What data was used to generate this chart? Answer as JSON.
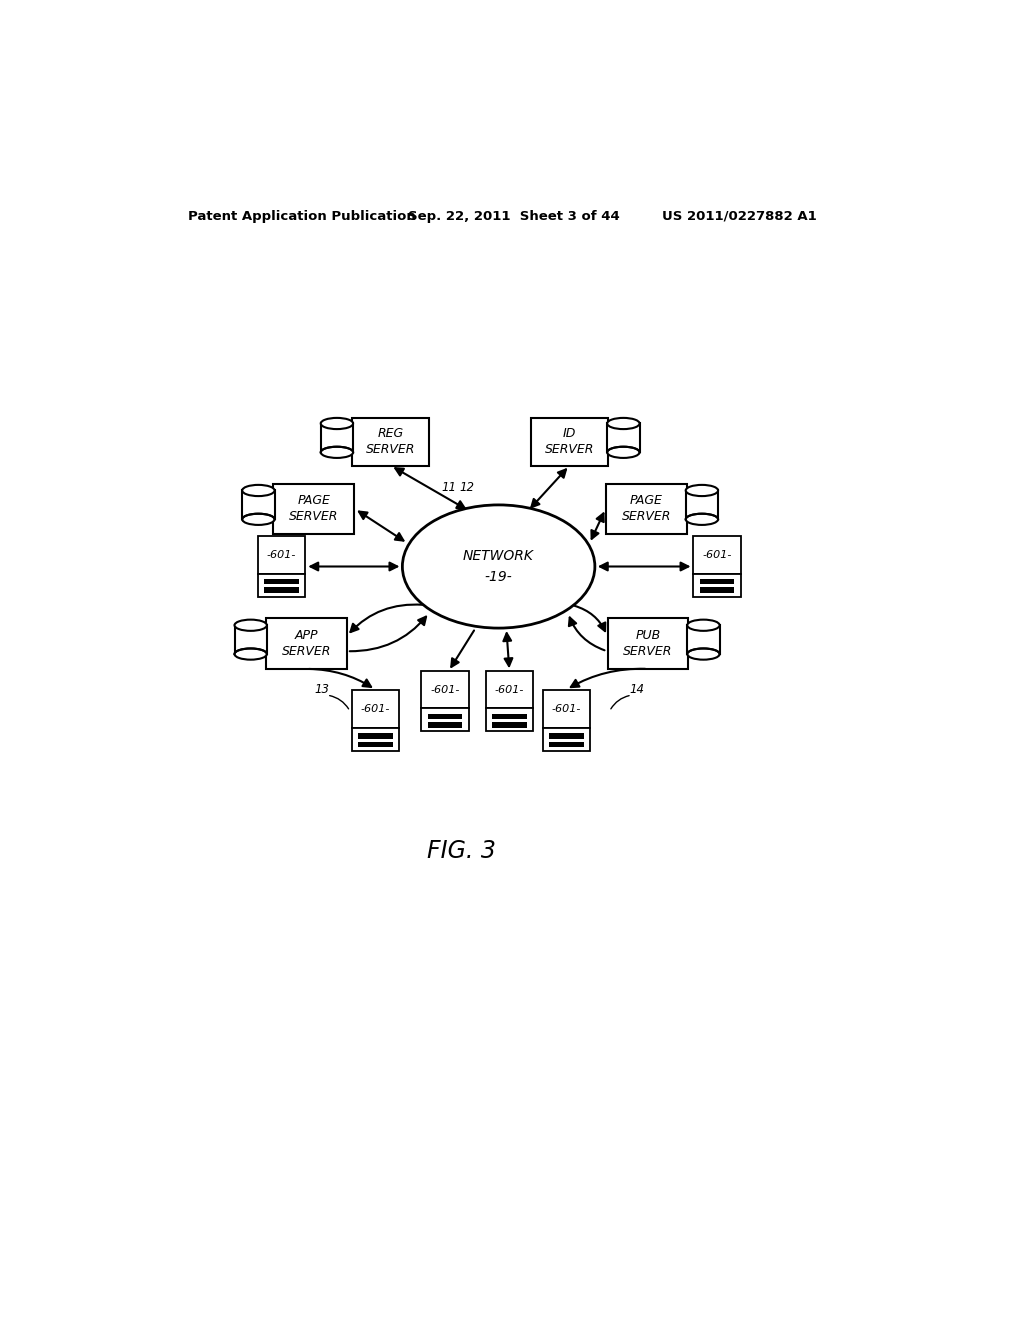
{
  "background_color": "#ffffff",
  "header_text": "Patent Application Publication",
  "header_date": "Sep. 22, 2011  Sheet 3 of 44",
  "header_patent": "US 2011/0227882 A1",
  "figure_label": "FIG. 3"
}
